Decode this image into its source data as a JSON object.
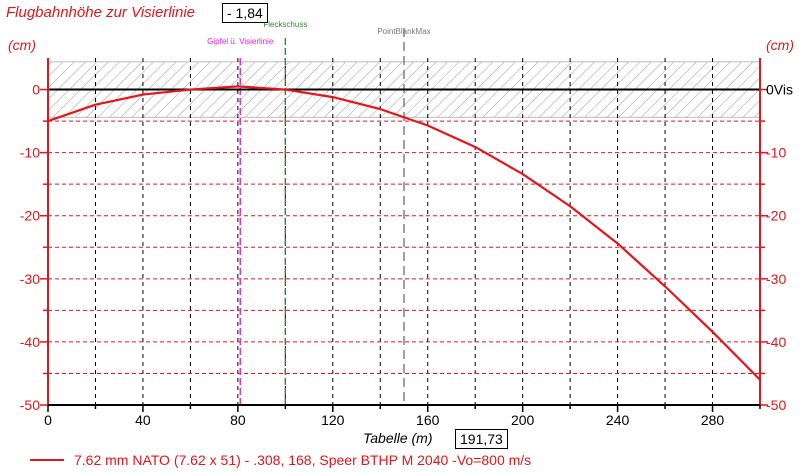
{
  "header": {
    "title": "Flugbahnhöhe zur Visierlinie",
    "y_readout": "- 1,84"
  },
  "footer": {
    "xlabel": "Tabelle (m)",
    "x_readout": "191,73"
  },
  "colors": {
    "curve": "#e8141b",
    "grid": "#e8141b",
    "apex": "#e020e0",
    "zero": "#2e8b2e",
    "pbr": "#777777"
  },
  "chart_data": {
    "type": "line",
    "ylabel_left": "(cm)",
    "ylabel_right": "(cm)",
    "xlim": [
      0,
      300
    ],
    "ylim": [
      -50,
      5
    ],
    "x_ticks": [
      0,
      40,
      80,
      120,
      160,
      200,
      240,
      280
    ],
    "y_ticks": [
      0,
      -10,
      -20,
      -30,
      -40,
      -50
    ],
    "right_y_ticks": [
      "0Vis",
      "-10",
      "-20",
      "-30",
      "-40",
      "-50"
    ],
    "grid": true,
    "hatched_band": [
      -4.4,
      4.4
    ],
    "markers": [
      {
        "label": "Gipfel ü. Visierlinie",
        "x": 81
      },
      {
        "label": "Fleckschuss",
        "x": 100
      },
      {
        "label": "PointBlankMax",
        "x": 150
      }
    ],
    "series": [
      {
        "name": "7.62 mm NATO (7.62 x 51) - .308, 168, Speer BTHP M 2040 -Vo=800 m/s",
        "x": [
          0,
          20,
          40,
          60,
          80,
          100,
          120,
          140,
          160,
          180,
          200,
          220,
          240,
          260,
          280,
          300
        ],
        "y": [
          -5.0,
          -2.4,
          -0.8,
          0.0,
          0.5,
          0.0,
          -1.2,
          -3.1,
          -5.7,
          -9.1,
          -13.4,
          -18.5,
          -24.4,
          -31.2,
          -38.4,
          -46.0
        ]
      }
    ]
  }
}
